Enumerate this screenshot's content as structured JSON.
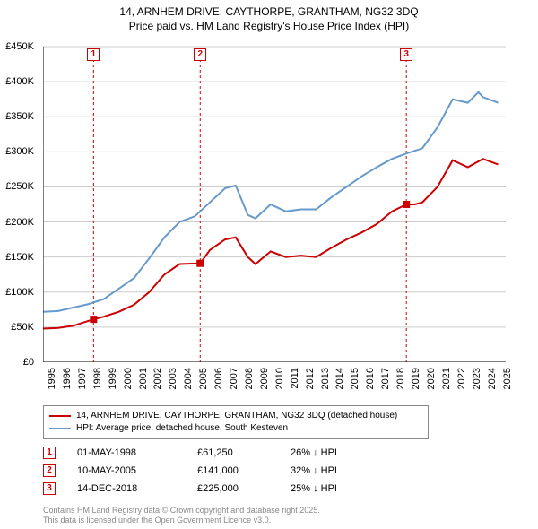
{
  "title": {
    "line1": "14, ARNHEM DRIVE, CAYTHORPE, GRANTHAM, NG32 3DQ",
    "line2": "Price paid vs. HM Land Registry's House Price Index (HPI)"
  },
  "chart": {
    "type": "line",
    "background_color": "#ffffff",
    "axis_color": "#000000",
    "grid_color": "#cccccc",
    "xlim": [
      1995,
      2025.5
    ],
    "ylim": [
      0,
      450000
    ],
    "y_ticks": [
      0,
      50000,
      100000,
      150000,
      200000,
      250000,
      300000,
      350000,
      400000,
      450000
    ],
    "y_tick_labels": [
      "£0",
      "£50K",
      "£100K",
      "£150K",
      "£200K",
      "£250K",
      "£300K",
      "£350K",
      "£400K",
      "£450K"
    ],
    "x_ticks": [
      1995,
      1996,
      1997,
      1998,
      1999,
      2000,
      2001,
      2002,
      2003,
      2004,
      2005,
      2006,
      2007,
      2008,
      2009,
      2010,
      2011,
      2012,
      2013,
      2014,
      2015,
      2016,
      2017,
      2018,
      2019,
      2020,
      2021,
      2022,
      2023,
      2024,
      2025
    ],
    "axis_label_fontsize": 11,
    "series": [
      {
        "name": "price_paid",
        "color": "#cc0000",
        "line_width": 2,
        "x": [
          1995,
          1996,
          1997,
          1998.33,
          1999,
          2000,
          2001,
          2002,
          2003,
          2004,
          2005.36,
          2006,
          2007,
          2007.7,
          2008.5,
          2009,
          2010,
          2011,
          2012,
          2013,
          2014,
          2015,
          2016,
          2017,
          2018,
          2018.95,
          2019.5,
          2020,
          2021,
          2022,
          2023,
          2024,
          2025
        ],
        "y": [
          48000,
          49000,
          52000,
          61250,
          65000,
          72000,
          82000,
          100000,
          125000,
          140000,
          141000,
          160000,
          175000,
          178000,
          150000,
          140000,
          158000,
          150000,
          152000,
          150000,
          163000,
          175000,
          185000,
          197000,
          215000,
          225000,
          225000,
          228000,
          250000,
          288000,
          278000,
          290000,
          282000
        ]
      },
      {
        "name": "hpi",
        "color": "#6699cc",
        "line_width": 2,
        "x": [
          1995,
          1996,
          1997,
          1998,
          1999,
          2000,
          2001,
          2002,
          2003,
          2004,
          2005,
          2006,
          2007,
          2007.7,
          2008.5,
          2009,
          2010,
          2011,
          2012,
          2013,
          2014,
          2015,
          2016,
          2017,
          2018,
          2019,
          2020,
          2021,
          2022,
          2023,
          2023.7,
          2024,
          2025
        ],
        "y": [
          72000,
          73000,
          78000,
          83000,
          90000,
          105000,
          120000,
          148000,
          178000,
          200000,
          208000,
          228000,
          248000,
          252000,
          210000,
          205000,
          225000,
          215000,
          218000,
          218000,
          235000,
          250000,
          265000,
          278000,
          290000,
          298000,
          305000,
          335000,
          375000,
          370000,
          385000,
          378000,
          370000
        ]
      }
    ],
    "sale_markers": [
      {
        "n": "1",
        "x": 1998.33,
        "line_color": "#cc0000",
        "line_dash": "3,3"
      },
      {
        "n": "2",
        "x": 2005.36,
        "line_color": "#cc0000",
        "line_dash": "3,3"
      },
      {
        "n": "3",
        "x": 2018.95,
        "line_color": "#cc0000",
        "line_dash": "3,3"
      }
    ]
  },
  "legend": {
    "items": [
      {
        "color": "#cc0000",
        "label": "14, ARNHEM DRIVE, CAYTHORPE, GRANTHAM, NG32 3DQ (detached house)"
      },
      {
        "color": "#6699cc",
        "label": "HPI: Average price, detached house, South Kesteven"
      }
    ]
  },
  "sales": [
    {
      "n": "1",
      "date": "01-MAY-1998",
      "price": "£61,250",
      "pct": "26% ↓ HPI"
    },
    {
      "n": "2",
      "date": "10-MAY-2005",
      "price": "£141,000",
      "pct": "32% ↓ HPI"
    },
    {
      "n": "3",
      "date": "14-DEC-2018",
      "price": "£225,000",
      "pct": "25% ↓ HPI"
    }
  ],
  "footer": {
    "line1": "Contains HM Land Registry data © Crown copyright and database right 2025.",
    "line2": "This data is licensed under the Open Government Licence v3.0."
  }
}
